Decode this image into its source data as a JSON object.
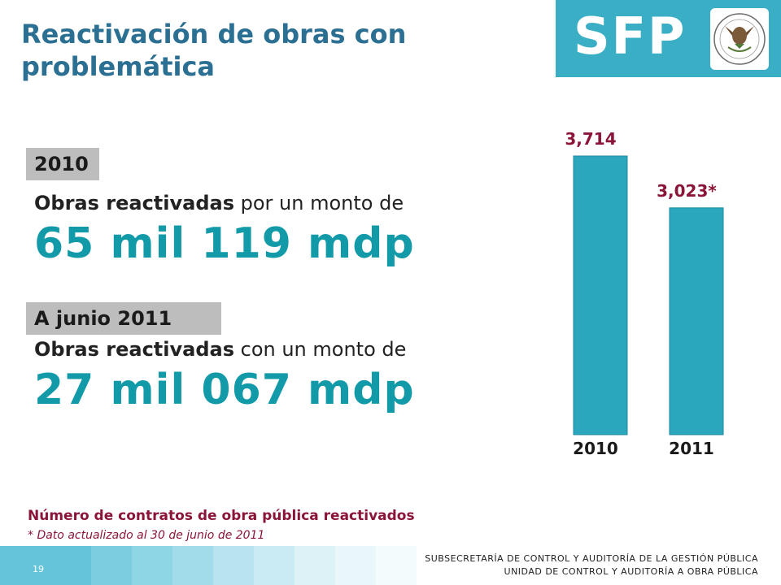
{
  "header": {
    "title": "Reactivación de obras con problemática",
    "logo_text": "SFP",
    "seal_text": "ESTADOS UNIDOS MEXICANOS"
  },
  "section_2010": {
    "tab": "2010",
    "desc_bold": "Obras reactivadas",
    "desc_rest": " por un monto de",
    "amount": "65 mil 119 mdp"
  },
  "section_2011": {
    "tab": "A junio 2011",
    "desc_bold": "Obras reactivadas",
    "desc_rest": " con un monto de",
    "amount": "27 mil 067 mdp"
  },
  "chart_data": {
    "type": "bar",
    "categories": [
      "2010",
      "2011"
    ],
    "values": [
      3714,
      3023
    ],
    "value_labels": [
      "3,714",
      "3,023*"
    ],
    "title": "Número de contratos de obra pública reactivados",
    "xlabel": "",
    "ylabel": "",
    "ylim": [
      0,
      3714
    ],
    "grid": false,
    "bar_color": "#2aa6bd",
    "label_color": "#8a1538"
  },
  "footnote": {
    "title": "Número de contratos de obra pública reactivados",
    "note": "* Dato actualizado al 30 de junio de 2011"
  },
  "footer": {
    "page": "19",
    "line1": "SUBSECRETARÍA DE CONTROL Y AUDITORÍA DE LA GESTIÓN PÚBLICA",
    "line2": "UNIDAD DE CONTROL Y AUDITORÍA A OBRA PÚBLICA"
  },
  "colors": {
    "title": "#2b6f93",
    "accent": "#129aa8",
    "logo_bg": "#3aaec5",
    "footer_band": [
      "#7ccde0",
      "#8ed5e5",
      "#a2dcea",
      "#b7e4ef",
      "#cbebf4",
      "#dcf2f7",
      "#eaf7fa",
      "#f4fbfd"
    ]
  }
}
